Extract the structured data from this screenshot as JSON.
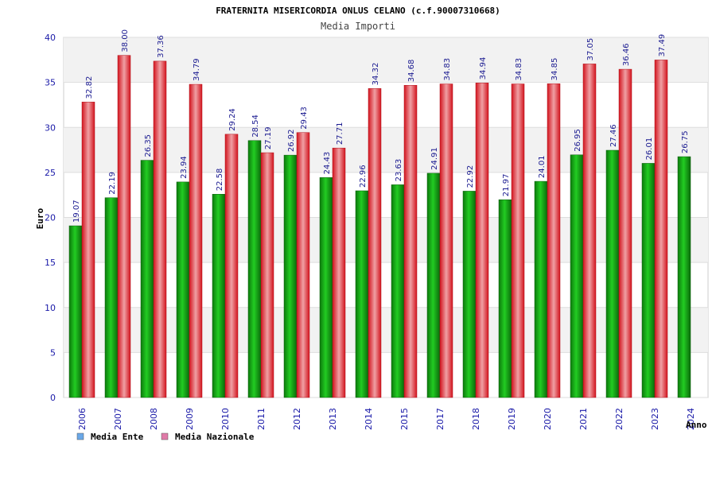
{
  "chart_data": {
    "type": "bar",
    "title": "FRATERNITA MISERICORDIA ONLUS CELANO (c.f.90007310668)",
    "subtitle": "Media Importi",
    "xlabel": "Anno",
    "ylabel": "Euro",
    "ylim": [
      0,
      40
    ],
    "yticks": [
      0,
      5,
      10,
      15,
      20,
      25,
      30,
      35,
      40
    ],
    "grid": true,
    "legend_position": "bottom-left",
    "categories": [
      "2006",
      "2007",
      "2008",
      "2009",
      "2010",
      "2011",
      "2012",
      "2013",
      "2014",
      "2015",
      "2017",
      "2018",
      "2019",
      "2020",
      "2021",
      "2022",
      "2023",
      "2024"
    ],
    "series": [
      {
        "name": "Media Ente",
        "color": "#1fa61f",
        "legend_color": "#6aa8e8",
        "values": [
          19.07,
          22.19,
          26.35,
          23.94,
          22.58,
          28.54,
          26.92,
          24.43,
          22.96,
          23.63,
          24.91,
          22.92,
          21.97,
          24.01,
          26.95,
          27.46,
          26.01,
          26.75
        ],
        "labels": [
          "19.07",
          "22.19",
          "26.35",
          "23.94",
          "22.58",
          "28.54",
          "26.92",
          "24.43",
          "22.96",
          "23.63",
          "24.91",
          "22.92",
          "21.97",
          "24.01",
          "26.95",
          "27.46",
          "26.01",
          "26.75"
        ]
      },
      {
        "name": "Media Nazionale",
        "color": "#e0222c",
        "legend_color": "#e07aa8",
        "values": [
          32.82,
          38.0,
          37.36,
          34.79,
          29.24,
          27.19,
          29.43,
          27.71,
          34.32,
          34.68,
          34.83,
          34.94,
          34.83,
          34.85,
          37.05,
          36.46,
          37.49,
          null
        ],
        "labels": [
          "32.82",
          "38.00",
          "37.36",
          "34.79",
          "29.24",
          "27.19",
          "29.43",
          "27.71",
          "34.32",
          "34.68",
          "34.83",
          "34.94",
          "34.83",
          "34.85",
          "37.05",
          "36.46",
          "37.49",
          ""
        ]
      }
    ]
  }
}
